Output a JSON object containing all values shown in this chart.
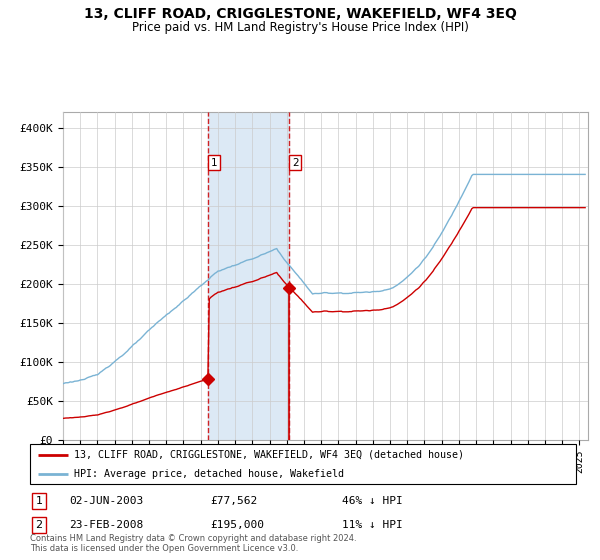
{
  "title": "13, CLIFF ROAD, CRIGGLESTONE, WAKEFIELD, WF4 3EQ",
  "subtitle": "Price paid vs. HM Land Registry's House Price Index (HPI)",
  "legend_line1": "13, CLIFF ROAD, CRIGGLESTONE, WAKEFIELD, WF4 3EQ (detached house)",
  "legend_line2": "HPI: Average price, detached house, Wakefield",
  "sale1_date": "02-JUN-2003",
  "sale1_price": "£77,562",
  "sale1_hpi": "46% ↓ HPI",
  "sale1_label": "1",
  "sale1_year": 2003.42,
  "sale1_value": 77562,
  "sale2_date": "23-FEB-2008",
  "sale2_price": "£195,000",
  "sale2_hpi": "11% ↓ HPI",
  "sale2_label": "2",
  "sale2_year": 2008.14,
  "sale2_value": 195000,
  "hpi_color": "#7ab3d4",
  "price_color": "#cc0000",
  "marker_color": "#cc0000",
  "vline_color": "#cc0000",
  "shade_color": "#dce9f5",
  "background_color": "#ffffff",
  "grid_color": "#cccccc",
  "footer": "Contains HM Land Registry data © Crown copyright and database right 2024.\nThis data is licensed under the Open Government Licence v3.0.",
  "ylim": [
    0,
    420000
  ],
  "yticks": [
    0,
    50000,
    100000,
    150000,
    200000,
    250000,
    300000,
    350000,
    400000
  ],
  "ytick_labels": [
    "£0",
    "£50K",
    "£100K",
    "£150K",
    "£200K",
    "£250K",
    "£300K",
    "£350K",
    "£400K"
  ],
  "xlim_start": 1995.0,
  "xlim_end": 2025.5
}
